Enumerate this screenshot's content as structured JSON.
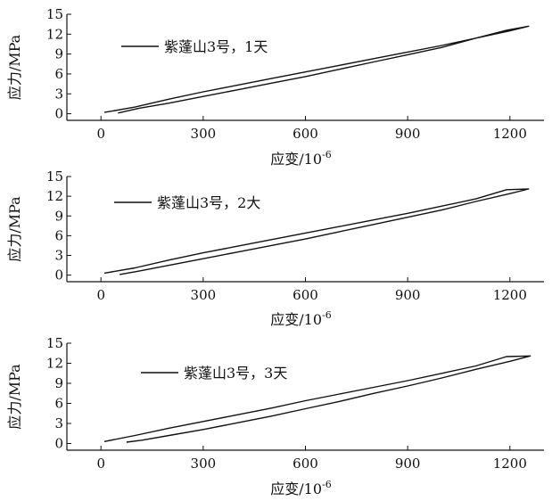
{
  "chart_data": [
    {
      "type": "line",
      "xlabel": "应变/10",
      "xlabel_sup": "-6",
      "ylabel": "应力/MPa",
      "xlim": [
        -100,
        1300
      ],
      "ylim": [
        -1,
        15
      ],
      "xticks": [
        0,
        300,
        600,
        900,
        1200
      ],
      "yticks": [
        0,
        3,
        6,
        9,
        12,
        15
      ],
      "legend": "top-left",
      "series": [
        {
          "name": "紫蓬山3号，1天",
          "x": [
            10,
            100,
            200,
            300,
            400,
            500,
            600,
            700,
            800,
            900,
            1000,
            1100,
            1190,
            1255,
            1200,
            1100,
            1000,
            900,
            800,
            700,
            600,
            500,
            400,
            300,
            200,
            110,
            50
          ],
          "y": [
            0.2,
            1.0,
            2.2,
            3.3,
            4.3,
            5.3,
            6.3,
            7.3,
            8.3,
            9.3,
            10.3,
            11.4,
            12.6,
            13.2,
            12.5,
            11.4,
            10.0,
            8.9,
            7.8,
            6.7,
            5.6,
            4.6,
            3.6,
            2.6,
            1.6,
            0.8,
            0.1
          ]
        }
      ]
    },
    {
      "type": "line",
      "xlabel": "应变/10",
      "xlabel_sup": "-6",
      "ylabel": "应力/MPa",
      "xlim": [
        -100,
        1300
      ],
      "ylim": [
        -1,
        15
      ],
      "xticks": [
        0,
        300,
        600,
        900,
        1200
      ],
      "yticks": [
        0,
        3,
        6,
        9,
        12,
        15
      ],
      "legend": "top-left",
      "series": [
        {
          "name": "紫蓬山3号，2大",
          "x": [
            10,
            100,
            200,
            300,
            400,
            500,
            600,
            700,
            800,
            900,
            1000,
            1100,
            1190,
            1255,
            1200,
            1100,
            1000,
            900,
            800,
            700,
            600,
            500,
            400,
            300,
            200,
            110,
            55
          ],
          "y": [
            0.3,
            1.1,
            2.3,
            3.4,
            4.4,
            5.4,
            6.4,
            7.4,
            8.4,
            9.4,
            10.5,
            11.6,
            13.0,
            13.1,
            12.4,
            11.2,
            9.9,
            8.8,
            7.7,
            6.6,
            5.5,
            4.5,
            3.5,
            2.5,
            1.5,
            0.6,
            0.1
          ]
        }
      ]
    },
    {
      "type": "line",
      "xlabel": "应变/10",
      "xlabel_sup": "-6",
      "ylabel": "应力/MPa",
      "xlim": [
        -100,
        1300
      ],
      "ylim": [
        -1,
        15
      ],
      "xticks": [
        0,
        300,
        600,
        900,
        1200
      ],
      "yticks": [
        0,
        3,
        6,
        9,
        12,
        15
      ],
      "legend": "top-left",
      "series": [
        {
          "name": "紫蓬山3号，3天",
          "x": [
            10,
            100,
            200,
            300,
            400,
            500,
            600,
            700,
            800,
            900,
            1000,
            1100,
            1190,
            1260,
            1200,
            1100,
            1000,
            900,
            800,
            700,
            600,
            500,
            400,
            300,
            200,
            120,
            75
          ],
          "y": [
            0.3,
            1.2,
            2.3,
            3.3,
            4.3,
            5.3,
            6.4,
            7.4,
            8.4,
            9.4,
            10.5,
            11.6,
            13.0,
            13.1,
            12.3,
            11.1,
            9.8,
            8.6,
            7.5,
            6.3,
            5.2,
            4.1,
            3.1,
            2.1,
            1.2,
            0.5,
            0.2
          ]
        }
      ]
    }
  ]
}
